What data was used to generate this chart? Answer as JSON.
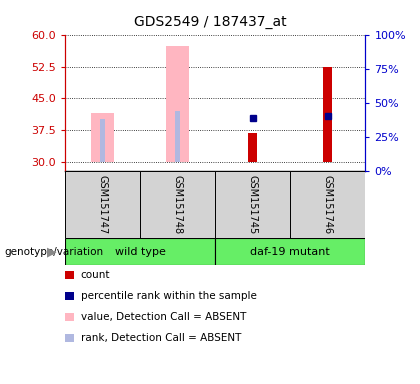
{
  "title": "GDS2549 / 187437_at",
  "samples": [
    "GSM151747",
    "GSM151748",
    "GSM151745",
    "GSM151746"
  ],
  "ylim_left": [
    28,
    60
  ],
  "ylim_right": [
    0,
    100
  ],
  "yticks_left": [
    30,
    37.5,
    45,
    52.5,
    60
  ],
  "yticks_right": [
    0,
    25,
    50,
    75,
    100
  ],
  "left_axis_color": "#cc0000",
  "right_axis_color": "#0000cc",
  "bar_data": {
    "GSM151747": {
      "value_absent": 41.5,
      "rank_absent": 40.2,
      "count": null,
      "percentile": null
    },
    "GSM151748": {
      "value_absent": 57.2,
      "rank_absent": 42.0,
      "count": null,
      "percentile": null
    },
    "GSM151745": {
      "value_absent": null,
      "rank_absent": null,
      "count": 37.0,
      "percentile": 39.0
    },
    "GSM151746": {
      "value_absent": null,
      "rank_absent": null,
      "count": 52.5,
      "percentile": 40.5
    }
  },
  "colors": {
    "count": "#cc0000",
    "percentile": "#00008b",
    "value_absent": "#ffb6c1",
    "rank_absent": "#b0b8e0"
  },
  "legend_items": [
    {
      "label": "count",
      "color": "#cc0000"
    },
    {
      "label": "percentile rank within the sample",
      "color": "#00008b"
    },
    {
      "label": "value, Detection Call = ABSENT",
      "color": "#ffb6c1"
    },
    {
      "label": "rank, Detection Call = ABSENT",
      "color": "#b0b8e0"
    }
  ],
  "baseline": 30,
  "group_wt": "wild type",
  "group_mut": "daf-19 mutant",
  "group_color": "#66ee66",
  "label_color": "#d3d3d3",
  "genotype_label": "genotype/variation"
}
